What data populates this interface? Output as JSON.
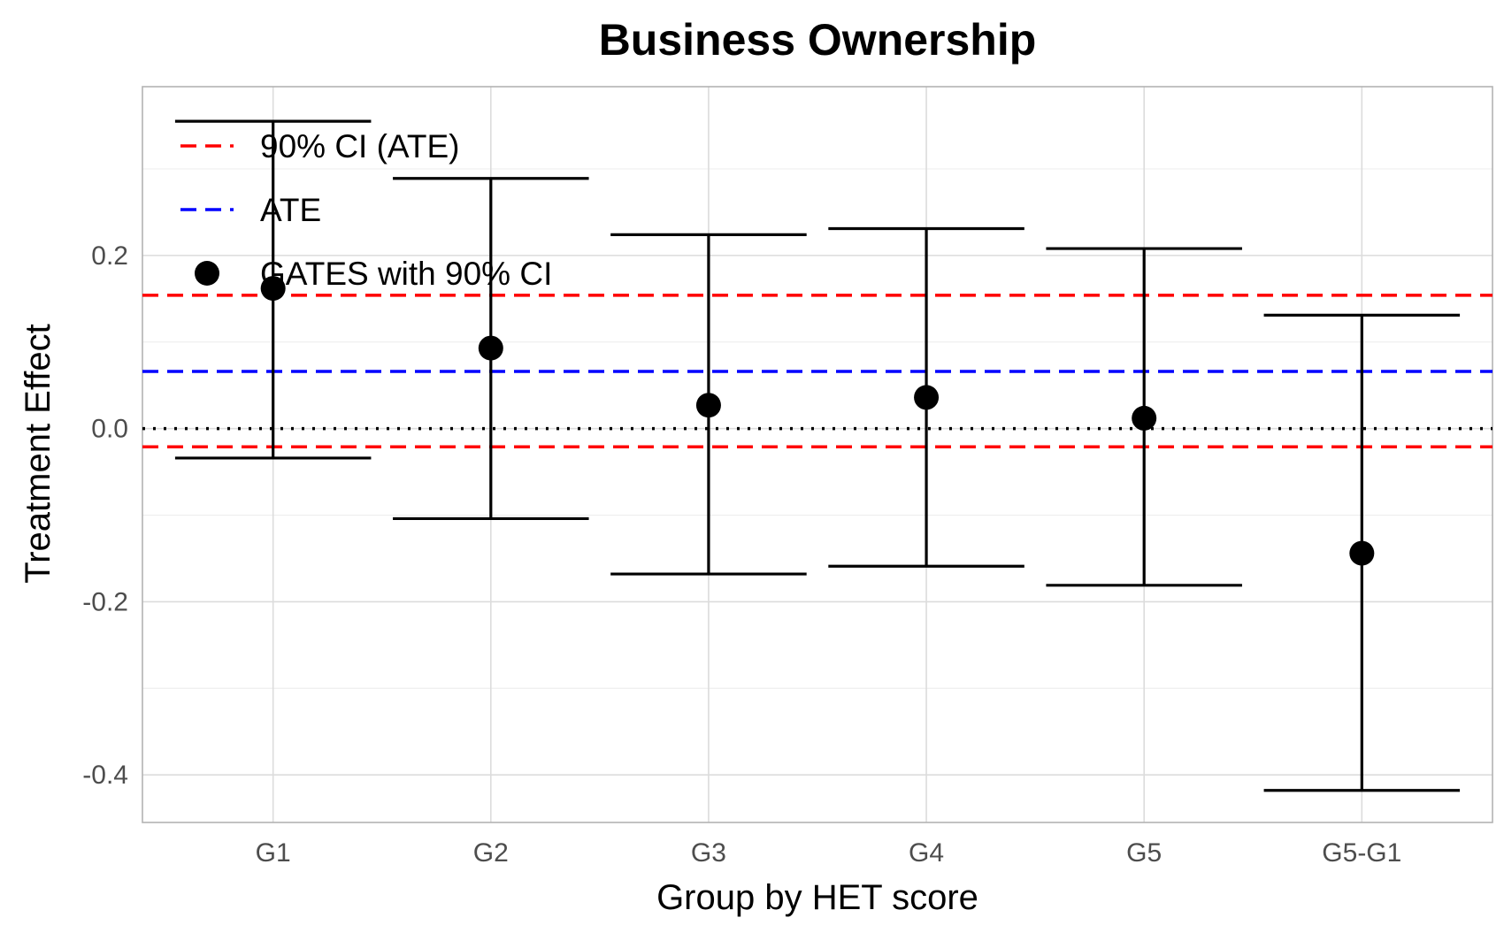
{
  "chart_data": {
    "type": "scatter",
    "title": "Business Ownership",
    "xlabel": "Group by HET score",
    "ylabel": "Treatment Effect",
    "categories": [
      "G1",
      "G2",
      "G3",
      "G4",
      "G5",
      "G5-G1"
    ],
    "ylim": [
      -0.455,
      0.395
    ],
    "y_ticks": [
      -0.4,
      -0.2,
      0.0,
      0.2
    ],
    "y_tick_labels": [
      "-0.4",
      "-0.2",
      "0.0",
      "0.2"
    ],
    "grid": true,
    "legend_position": "top-left",
    "legend": [
      {
        "label": "90% CI (ATE)",
        "style": "dashed-line",
        "color": "#ff0000"
      },
      {
        "label": "ATE",
        "style": "dashed-line",
        "color": "#0000ff"
      },
      {
        "label": "GATES with 90% CI",
        "style": "point",
        "color": "#000000"
      }
    ],
    "series": [
      {
        "name": "GATES with 90% CI",
        "estimates": [
          0.162,
          0.093,
          0.027,
          0.036,
          0.012,
          -0.144
        ],
        "ci_lower": [
          -0.034,
          -0.104,
          -0.168,
          -0.159,
          -0.181,
          -0.418
        ],
        "ci_upper": [
          0.355,
          0.289,
          0.224,
          0.231,
          0.208,
          0.131
        ],
        "color": "#000000"
      }
    ],
    "reference_lines": [
      {
        "name": "ATE",
        "value": 0.066,
        "color": "#0000ff",
        "style": "dashed"
      },
      {
        "name": "90% CI (ATE) upper",
        "value": 0.154,
        "color": "#ff0000",
        "style": "dashed"
      },
      {
        "name": "90% CI (ATE) lower",
        "value": -0.021,
        "color": "#ff0000",
        "style": "dashed"
      },
      {
        "name": "zero",
        "value": 0.0,
        "color": "#000000",
        "style": "dotted"
      }
    ]
  }
}
